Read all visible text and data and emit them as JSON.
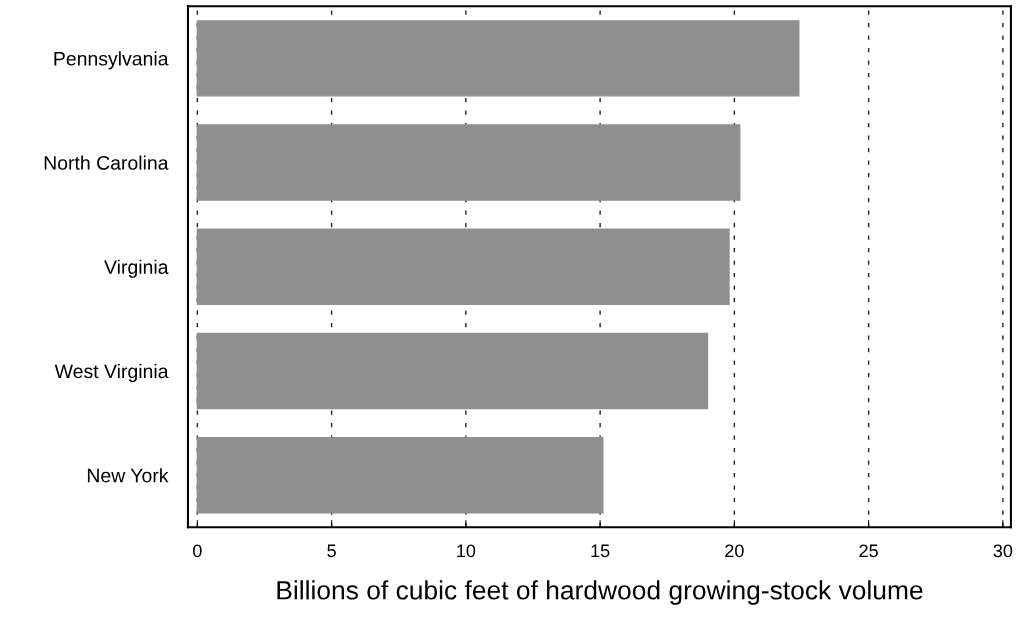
{
  "chart_data": {
    "type": "bar",
    "orientation": "horizontal",
    "categories": [
      "Pennsylvania",
      "North Carolina",
      "Virginia",
      "West Virginia",
      "New York"
    ],
    "values": [
      22.4,
      20.2,
      19.8,
      19.0,
      15.1
    ],
    "color": "#8f8f8f",
    "xlabel": "Billions of cubic feet of hardwood growing-stock volume",
    "xlim": [
      -0.35,
      30.3
    ],
    "xticks": [
      0,
      5,
      10,
      15,
      20,
      25,
      30
    ],
    "grid": "x"
  }
}
